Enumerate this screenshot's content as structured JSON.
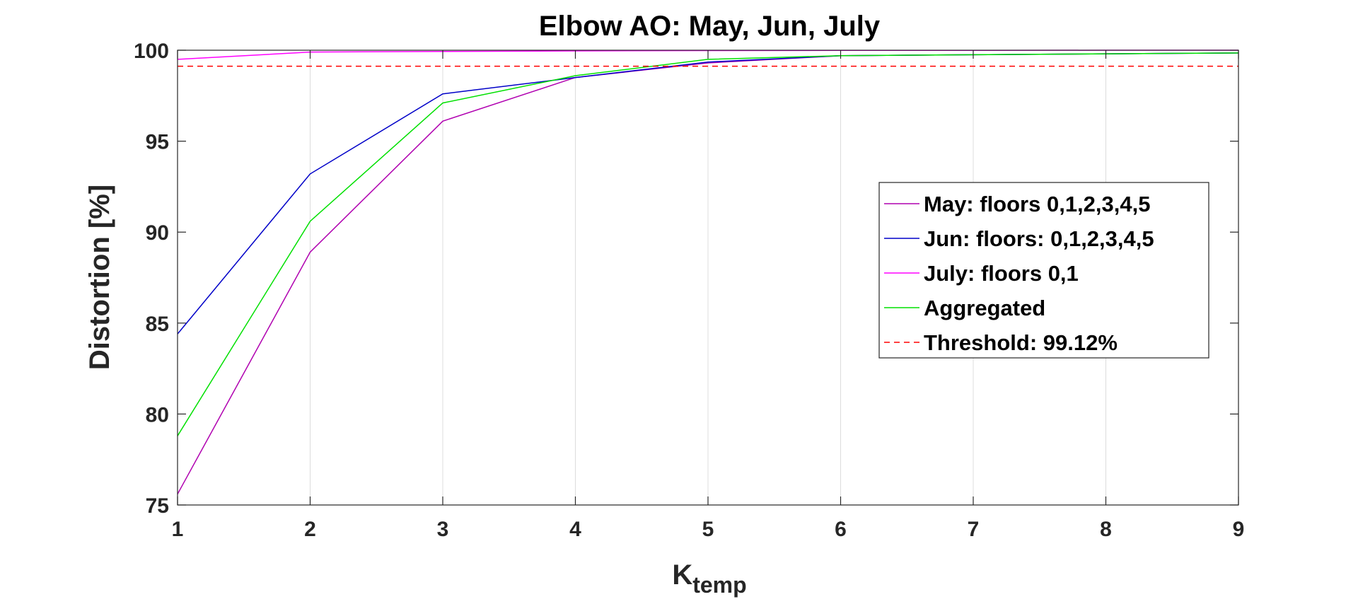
{
  "chart_data": {
    "type": "line",
    "title": "Elbow AO: May, Jun, July",
    "xlabel_main": "K",
    "xlabel_sub": "temp",
    "ylabel": "Distortion [%]",
    "x": [
      1,
      2,
      3,
      4,
      5,
      6,
      7,
      8,
      9
    ],
    "xlim": [
      1,
      9
    ],
    "ylim": [
      75,
      100
    ],
    "xticks": [
      "1",
      "2",
      "3",
      "4",
      "5",
      "6",
      "7",
      "8",
      "9"
    ],
    "yticks": [
      "75",
      "80",
      "85",
      "90",
      "95",
      "100"
    ],
    "grid": "vertical",
    "legend_position": "right",
    "series": [
      {
        "name": "May: floors 0,1,2,3,4,5",
        "color": "#b000b0",
        "dash": "solid",
        "values": [
          75.6,
          88.9,
          96.1,
          98.5,
          99.3,
          99.7,
          99.75,
          99.8,
          99.85
        ]
      },
      {
        "name": "Jun: floors: 0,1,2,3,4,5",
        "color": "#0000c8",
        "dash": "solid",
        "values": [
          84.4,
          93.2,
          97.6,
          98.5,
          99.35,
          99.7,
          99.75,
          99.8,
          99.85
        ]
      },
      {
        "name": "July: floors 0,1",
        "color": "#ff00ff",
        "dash": "solid",
        "values": [
          99.5,
          99.9,
          99.93,
          99.96,
          99.98,
          99.99,
          99.99,
          100,
          100
        ]
      },
      {
        "name": "Aggregated",
        "color": "#00e000",
        "dash": "solid",
        "values": [
          78.8,
          90.6,
          97.1,
          98.6,
          99.5,
          99.7,
          99.75,
          99.8,
          99.85
        ]
      },
      {
        "name": "Threshold: 99.12%",
        "color": "#ff0000",
        "dash": "dashed",
        "values": [
          99.12,
          99.12,
          99.12,
          99.12,
          99.12,
          99.12,
          99.12,
          99.12,
          99.12
        ]
      }
    ]
  }
}
